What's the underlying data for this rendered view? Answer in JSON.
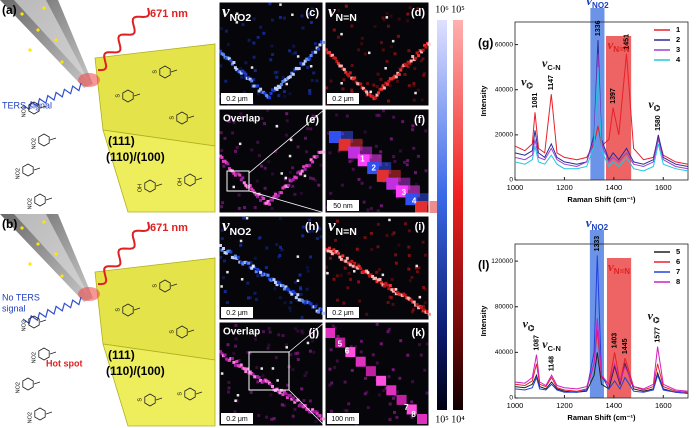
{
  "schematics": [
    {
      "label": "(a)",
      "laser": "671 nm",
      "signal": [
        "TERS signal"
      ],
      "facet_top": "(111)",
      "facet_bottom": "(110)/(100)",
      "substituents": [
        "NO2",
        "NO2",
        "NO2",
        "NO2",
        "S",
        "S",
        "S",
        "OH",
        "OH"
      ]
    },
    {
      "label": "(b)",
      "laser": "671 nm",
      "signal": [
        "No TERS",
        "signal"
      ],
      "hotspot": "Hot spot",
      "facet_top": "(111)",
      "facet_bottom": "(110)/(100)",
      "substituents": [
        "NO2",
        "NO2",
        "NO2",
        "NO2",
        "S",
        "S",
        "S",
        "S",
        "S"
      ]
    }
  ],
  "maps": [
    {
      "label": "(c)",
      "symbol": "ν",
      "sub": "NO2",
      "scale": "0.2 μm"
    },
    {
      "label": "(d)",
      "symbol": "ν",
      "sub": "N=N",
      "scale": "0.2 μm"
    },
    {
      "label": "(e)",
      "title": "Overlap"
    },
    {
      "label": "(f)",
      "scale": "50 nm",
      "spots": [
        "1",
        "2",
        "3",
        "4"
      ]
    },
    {
      "label": "(h)",
      "symbol": "ν",
      "sub": "NO2",
      "scale": "0.2 μm"
    },
    {
      "label": "(i)",
      "symbol": "ν",
      "sub": "N=N",
      "scale": "0.2 μm"
    },
    {
      "label": "(j)",
      "title": "Overlap",
      "scale": "0.2 μm"
    },
    {
      "label": "(k)",
      "scale": "100 nm",
      "spots": [
        "5",
        "6",
        "7",
        "8"
      ]
    }
  ],
  "colorbars": [
    {
      "top": "10⁶",
      "bottom": "10⁵"
    },
    {
      "top": "10⁵",
      "bottom": "10⁴"
    }
  ],
  "chart_data": [
    {
      "type": "line",
      "panel": "(g)",
      "xlabel": "Raman Shift (cm⁻¹)",
      "ylabel": "Intensity",
      "x": [
        1000,
        1040,
        1070,
        1081,
        1095,
        1120,
        1147,
        1170,
        1200,
        1250,
        1290,
        1320,
        1336,
        1350,
        1380,
        1397,
        1420,
        1451,
        1480,
        1520,
        1560,
        1580,
        1600,
        1650,
        1700
      ],
      "series": [
        {
          "name": "1",
          "color": "#e8202a",
          "values": [
            15000,
            13000,
            16000,
            30000,
            14000,
            12000,
            38000,
            12000,
            10000,
            9000,
            10000,
            16000,
            24000,
            15000,
            18000,
            32000,
            20000,
            56000,
            14000,
            9000,
            10000,
            19000,
            11000,
            8000,
            7000
          ]
        },
        {
          "name": "2",
          "color": "#2a2a9a",
          "values": [
            12000,
            11000,
            13000,
            22000,
            12000,
            10000,
            16000,
            10000,
            8000,
            7000,
            8000,
            20000,
            62000,
            18000,
            9000,
            12000,
            9000,
            14000,
            8000,
            7000,
            9000,
            20000,
            10000,
            7000,
            6000
          ]
        },
        {
          "name": "3",
          "color": "#9a40d0",
          "values": [
            10000,
            9000,
            11000,
            18000,
            10000,
            9000,
            14000,
            9000,
            7000,
            6000,
            8000,
            18000,
            56000,
            16000,
            8000,
            10000,
            8000,
            12000,
            7000,
            6000,
            8000,
            18000,
            9000,
            6000,
            5000
          ]
        },
        {
          "name": "4",
          "color": "#20c8e0",
          "values": [
            8000,
            7000,
            9000,
            15000,
            8000,
            7000,
            11000,
            7000,
            5000,
            5000,
            6000,
            15000,
            50000,
            13000,
            6000,
            8000,
            6000,
            10000,
            5000,
            4000,
            6000,
            16000,
            7000,
            5000,
            4000
          ]
        }
      ],
      "xlim": [
        1000,
        1700
      ],
      "ylim": [
        0,
        70000
      ],
      "xticks": [
        1000,
        1200,
        1400,
        1600
      ],
      "yticks": [
        0,
        20000,
        40000,
        60000
      ],
      "bands": [
        {
          "symbol": "ν",
          "sub": "NO2",
          "range": [
            1305,
            1362
          ],
          "color": "#3a70e0"
        },
        {
          "symbol": "ν",
          "sub": "N=N",
          "range": [
            1368,
            1470
          ],
          "color": "#e83030"
        }
      ],
      "peaks": [
        1081,
        1147,
        1336,
        1397,
        1451,
        1580
      ],
      "annotations": [
        {
          "symbol": "ν",
          "sub": "⌬"
        },
        {
          "symbol": "ν",
          "sub": "C-N"
        },
        {
          "symbol": "ν",
          "sub": "⌬"
        }
      ]
    },
    {
      "type": "line",
      "panel": "(l)",
      "xlabel": "Raman Shift (cm⁻¹)",
      "ylabel": "Intensity",
      "x": [
        1000,
        1040,
        1070,
        1087,
        1100,
        1125,
        1148,
        1170,
        1200,
        1250,
        1290,
        1320,
        1333,
        1350,
        1380,
        1403,
        1425,
        1445,
        1480,
        1520,
        1560,
        1577,
        1600,
        1650,
        1700
      ],
      "series": [
        {
          "name": "5",
          "color": "#202020",
          "values": [
            10000,
            9000,
            12000,
            20000,
            10000,
            8000,
            14000,
            8000,
            6000,
            5000,
            6000,
            20000,
            40000,
            12000,
            8000,
            28000,
            12000,
            30000,
            8000,
            6000,
            8000,
            22000,
            8000,
            5000,
            4000
          ]
        },
        {
          "name": "6",
          "color": "#e8202a",
          "values": [
            12000,
            11000,
            15000,
            30000,
            12000,
            10000,
            18000,
            9000,
            7000,
            6000,
            8000,
            30000,
            60000,
            18000,
            12000,
            40000,
            14000,
            35000,
            10000,
            7000,
            10000,
            30000,
            10000,
            6000,
            5000
          ]
        },
        {
          "name": "7",
          "color": "#2040e0",
          "values": [
            8000,
            7000,
            9000,
            18000,
            8000,
            7000,
            12000,
            7000,
            5000,
            5000,
            7000,
            40000,
            125000,
            20000,
            8000,
            15000,
            8000,
            18000,
            6000,
            5000,
            7000,
            20000,
            7000,
            5000,
            4000
          ]
        },
        {
          "name": "8",
          "color": "#d020c0",
          "values": [
            14000,
            13000,
            18000,
            38000,
            14000,
            11000,
            20000,
            11000,
            9000,
            8000,
            10000,
            30000,
            70000,
            20000,
            12000,
            30000,
            14000,
            28000,
            10000,
            8000,
            12000,
            45000,
            12000,
            7000,
            6000
          ]
        }
      ],
      "xlim": [
        1000,
        1700
      ],
      "ylim": [
        0,
        135000
      ],
      "xticks": [
        1000,
        1200,
        1400,
        1600
      ],
      "yticks": [
        0,
        40000,
        80000,
        120000
      ],
      "bands": [
        {
          "symbol": "ν",
          "sub": "NO2",
          "range": [
            1303,
            1360
          ],
          "color": "#3a70e0"
        },
        {
          "symbol": "ν",
          "sub": "N=N",
          "range": [
            1372,
            1470
          ],
          "color": "#e83030"
        }
      ],
      "peaks": [
        1087,
        1148,
        1333,
        1403,
        1445,
        1577
      ],
      "annotations": [
        {
          "symbol": "ν",
          "sub": "⌬"
        },
        {
          "symbol": "ν",
          "sub": "C-N"
        },
        {
          "symbol": "ν",
          "sub": "⌬"
        }
      ]
    }
  ]
}
